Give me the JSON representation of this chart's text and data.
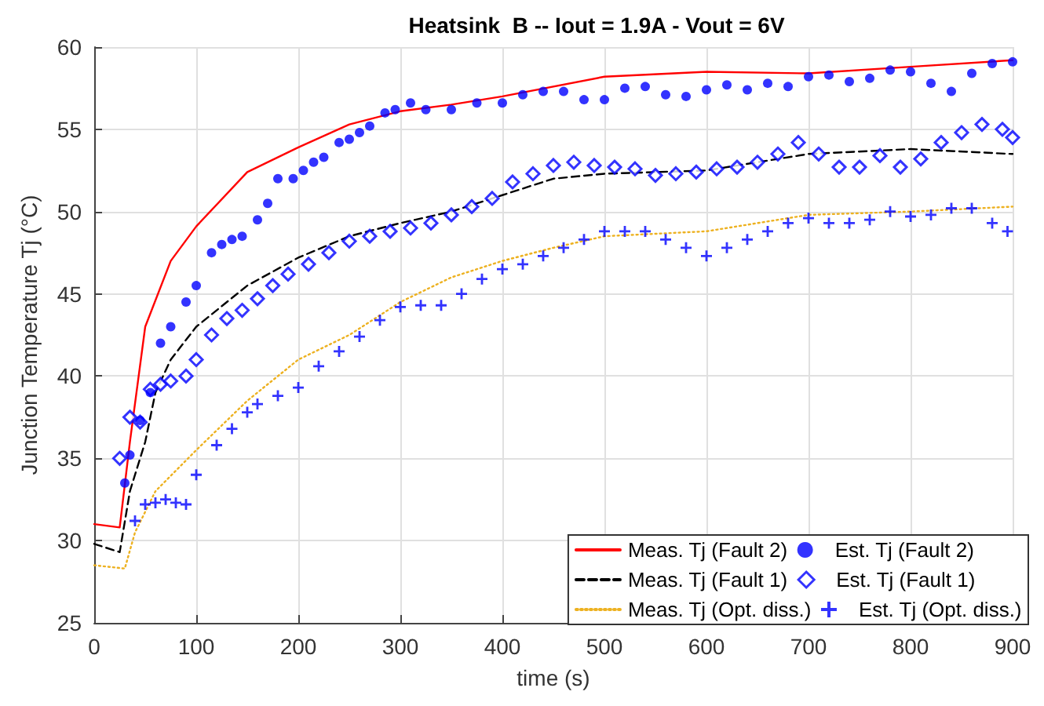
{
  "chart_data": {
    "type": "line",
    "title": "Heatsink  B -- Iout = 1.9A - Vout = 6V",
    "xlabel": "time (s)",
    "ylabel": "Junction Temperature Tj (°C)",
    "xlim": [
      0,
      900
    ],
    "xticks": [
      0,
      100,
      200,
      300,
      400,
      500,
      600,
      700,
      800,
      900
    ],
    "ylim": [
      25,
      60
    ],
    "yticks": [
      25,
      30,
      35,
      40,
      45,
      50,
      55,
      60
    ],
    "grid": true,
    "legend": "bottom right",
    "series": [
      {
        "name": "Meas. Tj (Fault 2)",
        "marker": "none",
        "line_style": "solid",
        "color": "#ff0000",
        "x": [
          0,
          25,
          35,
          50,
          75,
          100,
          150,
          200,
          250,
          300,
          350,
          400,
          500,
          600,
          700,
          800,
          900
        ],
        "values": [
          31,
          30.8,
          36,
          43,
          47,
          49.1,
          52.4,
          53.9,
          55.3,
          56.1,
          56.5,
          57,
          58.2,
          58.5,
          58.4,
          58.8,
          59.2
        ]
      },
      {
        "name": "Est. Tj (Fault 2)",
        "type": "scatter",
        "marker": "circle",
        "color": "#0000ff",
        "x": [
          30,
          35,
          45,
          55,
          65,
          75,
          90,
          100,
          115,
          125,
          135,
          145,
          160,
          170,
          180,
          195,
          205,
          215,
          225,
          240,
          250,
          260,
          270,
          285,
          295,
          310,
          325,
          350,
          375,
          400,
          420,
          440,
          460,
          480,
          500,
          520,
          540,
          560,
          580,
          600,
          620,
          640,
          660,
          680,
          700,
          720,
          740,
          760,
          780,
          800,
          820,
          840,
          860,
          880,
          900
        ],
        "values": [
          33.5,
          35.2,
          37.3,
          39,
          42,
          43,
          44.5,
          45.5,
          47.5,
          48,
          48.3,
          48.5,
          49.5,
          50.5,
          52,
          52,
          52.5,
          53,
          53.3,
          54.2,
          54.4,
          54.8,
          55.2,
          56,
          56.2,
          56.6,
          56.2,
          56.2,
          56.6,
          56.6,
          57.1,
          57.3,
          57.3,
          56.8,
          56.8,
          57.5,
          57.6,
          57.1,
          57,
          57.4,
          57.7,
          57.4,
          57.8,
          57.6,
          58.2,
          58.3,
          57.9,
          58.1,
          58.6,
          58.5,
          57.8,
          57.3,
          58.4,
          59,
          59.1
        ]
      },
      {
        "name": "Meas. Tj (Fault 1)",
        "marker": "none",
        "line_style": "dashed",
        "color": "#000000",
        "x": [
          0,
          25,
          35,
          50,
          60,
          75,
          100,
          150,
          200,
          250,
          300,
          350,
          400,
          450,
          500,
          600,
          700,
          800,
          900
        ],
        "values": [
          29.8,
          29.3,
          33,
          36,
          39,
          41,
          43,
          45.5,
          47.2,
          48.5,
          49.3,
          50,
          51,
          52,
          52.3,
          52.5,
          53.5,
          53.8,
          53.5
        ]
      },
      {
        "name": "Est. Tj (Fault 1)",
        "type": "scatter",
        "marker": "diamond",
        "color": "#0000ff",
        "x": [
          25,
          35,
          45,
          55,
          65,
          75,
          90,
          100,
          115,
          130,
          145,
          160,
          175,
          190,
          210,
          230,
          250,
          270,
          290,
          310,
          330,
          350,
          370,
          390,
          410,
          430,
          450,
          470,
          490,
          510,
          530,
          550,
          570,
          590,
          610,
          630,
          650,
          670,
          690,
          710,
          730,
          750,
          770,
          790,
          810,
          830,
          850,
          870,
          890,
          900
        ],
        "values": [
          35,
          37.5,
          37.2,
          39.2,
          39.5,
          39.7,
          40,
          41,
          42.5,
          43.5,
          44,
          44.7,
          45.5,
          46.2,
          46.8,
          47.5,
          48.2,
          48.5,
          48.8,
          49,
          49.3,
          49.8,
          50.3,
          50.8,
          51.8,
          52.3,
          52.8,
          53,
          52.8,
          52.7,
          52.6,
          52.2,
          52.3,
          52.4,
          52.6,
          52.7,
          53,
          53.5,
          54.2,
          53.5,
          52.7,
          52.7,
          53.4,
          52.7,
          53.2,
          54.2,
          54.8,
          55.3,
          55,
          54.5
        ]
      },
      {
        "name": "Meas. Tj (Opt. diss.)",
        "marker": "none",
        "line_style": "dotted",
        "color": "#edb120",
        "x": [
          0,
          30,
          40,
          60,
          100,
          150,
          200,
          250,
          300,
          350,
          400,
          450,
          500,
          600,
          700,
          800,
          900
        ],
        "values": [
          28.5,
          28.3,
          30.5,
          33,
          35.5,
          38.5,
          41,
          42.5,
          44.5,
          46,
          47,
          47.8,
          48.5,
          48.8,
          49.8,
          50,
          50.3
        ]
      },
      {
        "name": "Est. Tj (Opt. diss.)",
        "type": "scatter",
        "marker": "cross",
        "color": "#0000ff",
        "x": [
          40,
          50,
          60,
          70,
          80,
          90,
          100,
          120,
          135,
          150,
          160,
          180,
          200,
          220,
          240,
          260,
          280,
          300,
          320,
          340,
          360,
          380,
          400,
          420,
          440,
          460,
          480,
          500,
          520,
          540,
          560,
          580,
          600,
          620,
          640,
          660,
          680,
          700,
          720,
          740,
          760,
          780,
          800,
          820,
          840,
          860,
          880,
          895
        ],
        "values": [
          31.2,
          32.2,
          32.3,
          32.5,
          32.3,
          32.2,
          34,
          35.8,
          36.8,
          37.8,
          38.3,
          38.8,
          39.3,
          40.6,
          41.5,
          42.4,
          43.4,
          44.2,
          44.3,
          44.3,
          45,
          45.9,
          46.5,
          46.8,
          47.3,
          47.8,
          48.3,
          48.8,
          48.8,
          48.8,
          48.3,
          47.8,
          47.3,
          47.8,
          48.3,
          48.8,
          49.3,
          49.6,
          49.3,
          49.3,
          49.5,
          50,
          49.7,
          49.8,
          50.2,
          50.2,
          49.3,
          48.8
        ]
      }
    ]
  }
}
